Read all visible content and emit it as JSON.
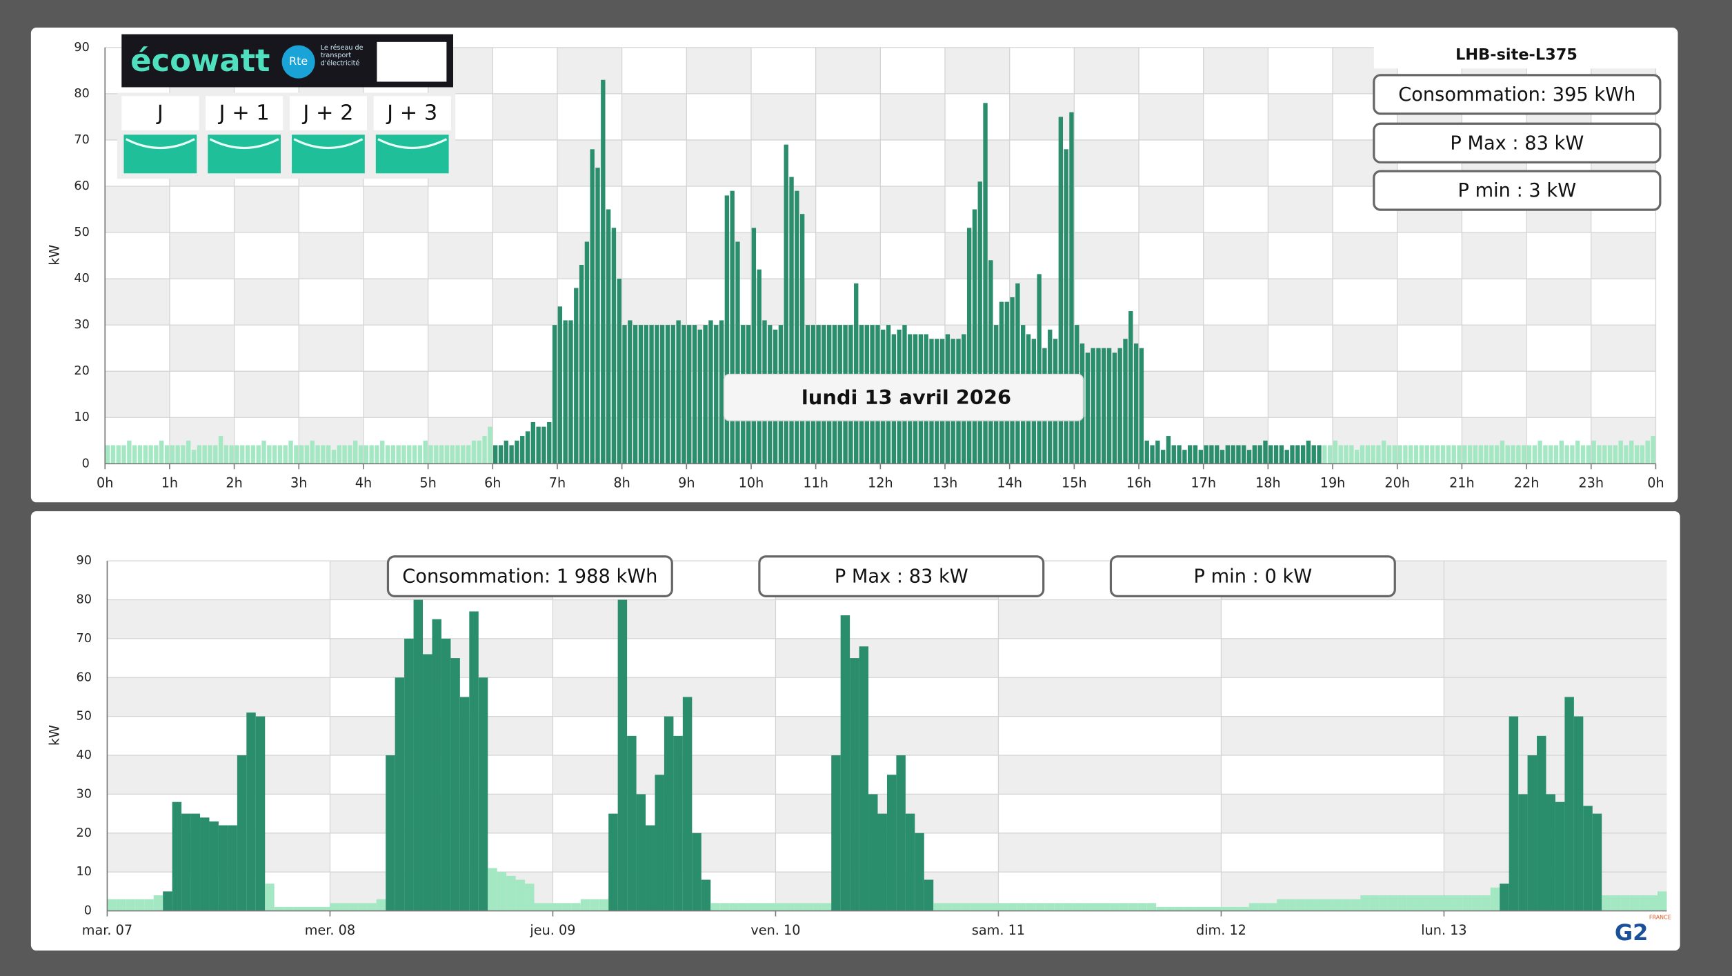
{
  "ecowatt": {
    "brand": "écowatt",
    "rte": "Rte",
    "rte_tagline": "Le réseau de transport d'électricité",
    "days": [
      "J",
      "J + 1",
      "J + 2",
      "J + 3"
    ]
  },
  "logo": {
    "name": "G2",
    "country": "FRANCE"
  },
  "chart_data": [
    {
      "type": "bar",
      "ylabel": "kW",
      "site_name": "LHB-site-L375",
      "date_label": "lundi 13 avril 2026",
      "stats": [
        "Consommation: 395 kWh",
        "P Max :  83 kW",
        "P min : 3 kW"
      ],
      "palette": {
        "a": "#a3e8c2",
        "b": "#2a8e6c"
      },
      "bar_colors": "aaaaaaaaaaaaaaaaaaaaaaaaaaaaaaaaaaaaaaaaaaaaaaaaaaaaaaaaaaaaaaaaaaaaaaaabbbbbbbbbbbbbbbbbbbbbbbbbbbbbbbbbbbbbbbbbbbbbbbbbbbbbbbbbbbbbbbbbbbbbbbbbbbbbbbbbbbbbbbbbbbbbbbbbbbbbbbbbbbbbbbbbbbbbbbbbbbbbbbbbbbbbbbbbbbbbbbbbbbbbbbbbbaaaaaaaaaaaaaaaaaaaaaaaaaaaaaaaaaaaaaaaaaaaaaaaaaaaaaaaaaaaaaaaaaaaaaaaaaaaaaaaaaaaa",
      "values": [
        4,
        4,
        4,
        4,
        5,
        4,
        4,
        4,
        4,
        4,
        5,
        4,
        4,
        4,
        4,
        5,
        3,
        4,
        4,
        4,
        4,
        6,
        4,
        4,
        4,
        4,
        4,
        4,
        4,
        5,
        4,
        4,
        4,
        4,
        5,
        4,
        4,
        4,
        5,
        4,
        4,
        4,
        3,
        4,
        4,
        4,
        5,
        4,
        4,
        4,
        4,
        5,
        4,
        4,
        4,
        4,
        4,
        4,
        4,
        5,
        4,
        4,
        4,
        4,
        4,
        4,
        4,
        4,
        5,
        5,
        6,
        8,
        4,
        4,
        5,
        4,
        5,
        6,
        7,
        9,
        8,
        8,
        9,
        30,
        34,
        31,
        31,
        38,
        43,
        48,
        68,
        64,
        83,
        55,
        51,
        40,
        30,
        31,
        30,
        30,
        30,
        30,
        30,
        30,
        30,
        30,
        31,
        30,
        30,
        30,
        29,
        30,
        31,
        30,
        31,
        58,
        59,
        48,
        30,
        30,
        51,
        42,
        31,
        30,
        29,
        30,
        69,
        62,
        59,
        54,
        30,
        30,
        30,
        30,
        30,
        30,
        30,
        30,
        30,
        39,
        30,
        30,
        30,
        30,
        29,
        30,
        28,
        29,
        30,
        28,
        28,
        28,
        28,
        27,
        27,
        27,
        28,
        27,
        27,
        28,
        51,
        55,
        61,
        78,
        44,
        30,
        35,
        35,
        36,
        39,
        30,
        28,
        27,
        41,
        25,
        29,
        27,
        75,
        68,
        76,
        30,
        26,
        24,
        25,
        25,
        25,
        25,
        24,
        25,
        27,
        33,
        26,
        25,
        5,
        4,
        5,
        3,
        6,
        4,
        4,
        3,
        4,
        4,
        3,
        4,
        4,
        4,
        3,
        4,
        4,
        4,
        4,
        3,
        4,
        4,
        5,
        4,
        4,
        4,
        3,
        4,
        4,
        4,
        5,
        4,
        4,
        4,
        4,
        5,
        4,
        4,
        4,
        3,
        4,
        4,
        4,
        4,
        5,
        4,
        4,
        4,
        4,
        4,
        4,
        4,
        4,
        4,
        4,
        4,
        4,
        4,
        4,
        4,
        4,
        4,
        4,
        4,
        4,
        4,
        5,
        4,
        4,
        4,
        4,
        4,
        4,
        5,
        4,
        4,
        4,
        5,
        4,
        4,
        5,
        4,
        4,
        5,
        4,
        4,
        4,
        4,
        5,
        4,
        5,
        4,
        4,
        5,
        6
      ],
      "xlim": [
        0,
        288
      ],
      "xticks": [
        {
          "value": 0,
          "label": "0h"
        },
        {
          "value": 12,
          "label": "1h"
        },
        {
          "value": 24,
          "label": "2h"
        },
        {
          "value": 36,
          "label": "3h"
        },
        {
          "value": 48,
          "label": "4h"
        },
        {
          "value": 60,
          "label": "5h"
        },
        {
          "value": 72,
          "label": "6h"
        },
        {
          "value": 84,
          "label": "7h"
        },
        {
          "value": 96,
          "label": "8h"
        },
        {
          "value": 108,
          "label": "9h"
        },
        {
          "value": 120,
          "label": "10h"
        },
        {
          "value": 132,
          "label": "11h"
        },
        {
          "value": 144,
          "label": "12h"
        },
        {
          "value": 156,
          "label": "13h"
        },
        {
          "value": 168,
          "label": "14h"
        },
        {
          "value": 180,
          "label": "15h"
        },
        {
          "value": 192,
          "label": "16h"
        },
        {
          "value": 204,
          "label": "17h"
        },
        {
          "value": 216,
          "label": "18h"
        },
        {
          "value": 228,
          "label": "19h"
        },
        {
          "value": 240,
          "label": "20h"
        },
        {
          "value": 252,
          "label": "21h"
        },
        {
          "value": 264,
          "label": "22h"
        },
        {
          "value": 276,
          "label": "23h"
        },
        {
          "value": 288,
          "label": "0h"
        }
      ],
      "ylim": [
        0,
        90
      ],
      "yticks": [
        0,
        10,
        20,
        30,
        40,
        50,
        60,
        70,
        80,
        90
      ],
      "grid": true
    },
    {
      "type": "bar",
      "ylabel": "kW",
      "stats": [
        "Consommation: 1 988 kWh",
        "P Max :  83 kW",
        "P min : 0 kW"
      ],
      "palette": {
        "a": "#a3e8c2",
        "b": "#2a8e6c"
      },
      "bar_colors": "aaaaaabbbbbbbbbbbaaaaaaaaaaaaabbbbbbbbbbbaaaaaaaaaaaaabbbbbbbbbbbaaaaaaaaaaaaabbbbbbbbbbbaaaaaaaaaaaaaaaaaaaaaaaaaaaaaaaaaaaaaaaaaaaaaaaaaaaaaaaaaaaaabbbbbbbbbbbaaaaaaa",
      "values": [
        3,
        3,
        3,
        3,
        3,
        4,
        5,
        28,
        25,
        25,
        24,
        23,
        22,
        22,
        40,
        51,
        50,
        7,
        1,
        1,
        1,
        1,
        1,
        1,
        2,
        2,
        2,
        2,
        2,
        3,
        40,
        60,
        70,
        80,
        66,
        75,
        70,
        65,
        55,
        77,
        60,
        11,
        10,
        9,
        8,
        7,
        2,
        2,
        2,
        2,
        2,
        3,
        3,
        3,
        25,
        80,
        45,
        30,
        22,
        35,
        50,
        45,
        55,
        20,
        8,
        2,
        2,
        2,
        2,
        2,
        2,
        2,
        2,
        2,
        2,
        2,
        2,
        2,
        40,
        76,
        65,
        68,
        30,
        25,
        35,
        40,
        25,
        20,
        8,
        2,
        2,
        2,
        2,
        2,
        2,
        2,
        2,
        2,
        2,
        2,
        2,
        2,
        2,
        2,
        2,
        2,
        2,
        2,
        2,
        2,
        2,
        2,
        2,
        1,
        1,
        1,
        1,
        1,
        1,
        1,
        1,
        1,
        1,
        2,
        2,
        2,
        3,
        3,
        3,
        3,
        3,
        3,
        3,
        3,
        3,
        4,
        4,
        4,
        4,
        4,
        4,
        4,
        4,
        4,
        4,
        4,
        4,
        4,
        4,
        6,
        7,
        50,
        30,
        40,
        45,
        30,
        28,
        55,
        50,
        27,
        25,
        4,
        4,
        4,
        4,
        4,
        4,
        5
      ],
      "xlim": [
        0,
        168
      ],
      "xticks": [
        {
          "value": 0,
          "label": "mar. 07"
        },
        {
          "value": 24,
          "label": "mer. 08"
        },
        {
          "value": 48,
          "label": "jeu. 09"
        },
        {
          "value": 72,
          "label": "ven. 10"
        },
        {
          "value": 96,
          "label": "sam. 11"
        },
        {
          "value": 120,
          "label": "dim. 12"
        },
        {
          "value": 144,
          "label": "lun. 13"
        }
      ],
      "ylim": [
        0,
        90
      ],
      "yticks": [
        0,
        10,
        20,
        30,
        40,
        50,
        60,
        70,
        80,
        90
      ],
      "grid": true
    }
  ]
}
